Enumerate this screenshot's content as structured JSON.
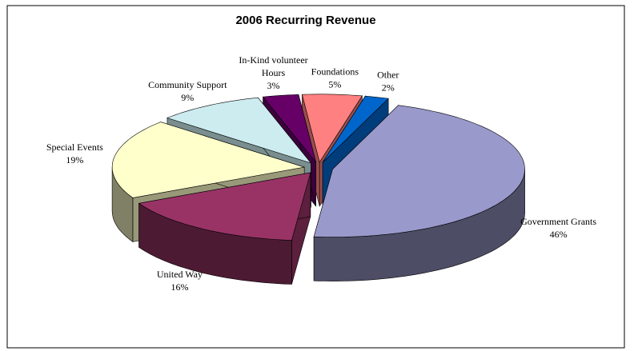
{
  "chart_data": {
    "type": "pie3d",
    "title": "2006 Recurring Revenue",
    "categories": [
      "Government Grants",
      "United Way",
      "Special Events",
      "Community Support",
      "In-Kind volunteer Hours",
      "Foundations",
      "Other"
    ],
    "values": [
      46,
      16,
      19,
      9,
      3,
      5,
      2
    ],
    "value_labels": [
      "46%",
      "16%",
      "19%",
      "9%",
      "3%",
      "5%",
      "2%"
    ],
    "colors": [
      "#9999cc",
      "#993366",
      "#ffffcc",
      "#ccecf0",
      "#660066",
      "#ff8080",
      "#0066cc"
    ]
  }
}
